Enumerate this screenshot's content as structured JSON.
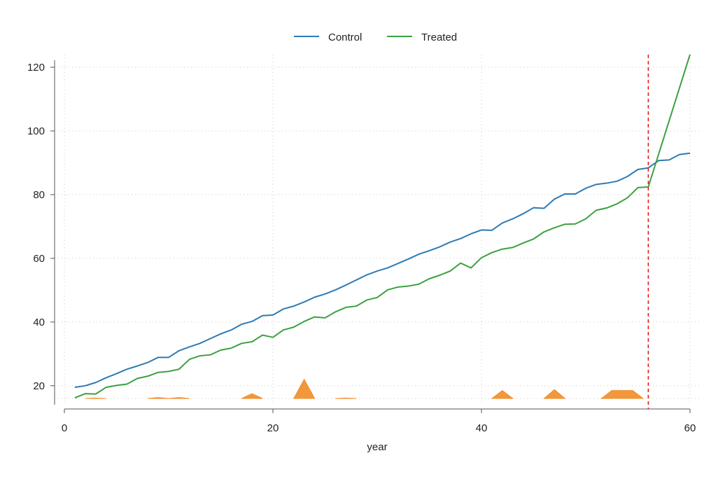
{
  "chart_data": {
    "type": "line",
    "title": "",
    "xlabel": "year",
    "ylabel": "",
    "xlim": [
      0,
      60
    ],
    "ylim": [
      16,
      120
    ],
    "xticks": [
      0,
      20,
      40,
      60
    ],
    "yticks": [
      20,
      40,
      60,
      80,
      100,
      120
    ],
    "x_tick_labels": [
      "0",
      "20",
      "40",
      "60"
    ],
    "y_tick_labels": [
      "20",
      "40",
      "60",
      "80",
      "100",
      "120"
    ],
    "grid": "dotted",
    "legend_position": "top",
    "treatment_year": 56,
    "series": [
      {
        "name": "Control",
        "color": "#2e7ab4",
        "x": [
          1,
          2,
          3,
          4,
          5,
          6,
          7,
          8,
          9,
          10,
          11,
          12,
          13,
          14,
          15,
          16,
          17,
          18,
          19,
          20,
          21,
          22,
          23,
          24,
          25,
          26,
          27,
          28,
          29,
          30,
          31,
          32,
          33,
          34,
          35,
          36,
          37,
          38,
          39,
          40,
          41,
          42,
          43,
          44,
          45,
          46,
          47,
          48,
          49,
          50,
          51,
          52,
          53,
          54,
          55,
          56,
          57,
          58,
          59,
          60
        ],
        "y": [
          19.5,
          20.0,
          21.0,
          22.5,
          23.8,
          25.2,
          26.2,
          27.3,
          28.9,
          28.9,
          31.0,
          32.2,
          33.3,
          34.8,
          36.3,
          37.5,
          39.3,
          40.2,
          42.0,
          42.2,
          44.1,
          45.0,
          46.3,
          47.8,
          48.8,
          50.1,
          51.6,
          53.2,
          54.8,
          56.0,
          57.0,
          58.4,
          59.8,
          61.3,
          62.4,
          63.6,
          65.1,
          66.2,
          67.7,
          68.9,
          68.8,
          71.1,
          72.4,
          74.0,
          75.9,
          75.7,
          78.6,
          80.2,
          80.2,
          82.0,
          83.2,
          83.6,
          84.2,
          85.7,
          87.9,
          88.4,
          90.7,
          90.9,
          92.6,
          93.0
        ]
      },
      {
        "name": "Treated",
        "color": "#3da041",
        "x": [
          1,
          2,
          3,
          4,
          5,
          6,
          7,
          8,
          9,
          10,
          11,
          12,
          13,
          14,
          15,
          16,
          17,
          18,
          19,
          20,
          21,
          22,
          23,
          24,
          25,
          26,
          27,
          28,
          29,
          30,
          31,
          32,
          33,
          34,
          35,
          36,
          37,
          38,
          39,
          40,
          41,
          42,
          43,
          44,
          45,
          46,
          47,
          48,
          49,
          50,
          51,
          52,
          53,
          54,
          55,
          56,
          57,
          58,
          59,
          60
        ],
        "y": [
          16.2,
          17.5,
          17.4,
          19.5,
          20.1,
          20.5,
          22.3,
          23.0,
          24.2,
          24.5,
          25.2,
          28.3,
          29.4,
          29.7,
          31.2,
          31.8,
          33.3,
          33.8,
          35.9,
          35.2,
          37.5,
          38.4,
          40.2,
          41.6,
          41.3,
          43.2,
          44.6,
          45.0,
          46.9,
          47.7,
          50.1,
          51.0,
          51.3,
          51.9,
          53.6,
          54.7,
          56.0,
          58.5,
          57.0,
          60.2,
          61.8,
          62.9,
          63.4,
          64.8,
          66.1,
          68.3,
          69.6,
          70.7,
          70.8,
          72.4,
          75.1,
          75.8,
          77.1,
          79.0,
          82.2,
          82.4,
          null,
          null,
          null,
          124.0
        ]
      }
    ],
    "bottom_markers": {
      "color": "#f28c28",
      "baseline": 16,
      "x": [
        3,
        9,
        11,
        18,
        23,
        27,
        42,
        47,
        53.5
      ],
      "height": [
        0.15,
        0.3,
        0.3,
        1.5,
        6.0,
        0.15,
        2.5,
        2.8,
        2.5
      ],
      "half_width": [
        1.0,
        1.0,
        1.0,
        1.0,
        1.0,
        1.0,
        1.0,
        1.0,
        2.0
      ]
    }
  }
}
